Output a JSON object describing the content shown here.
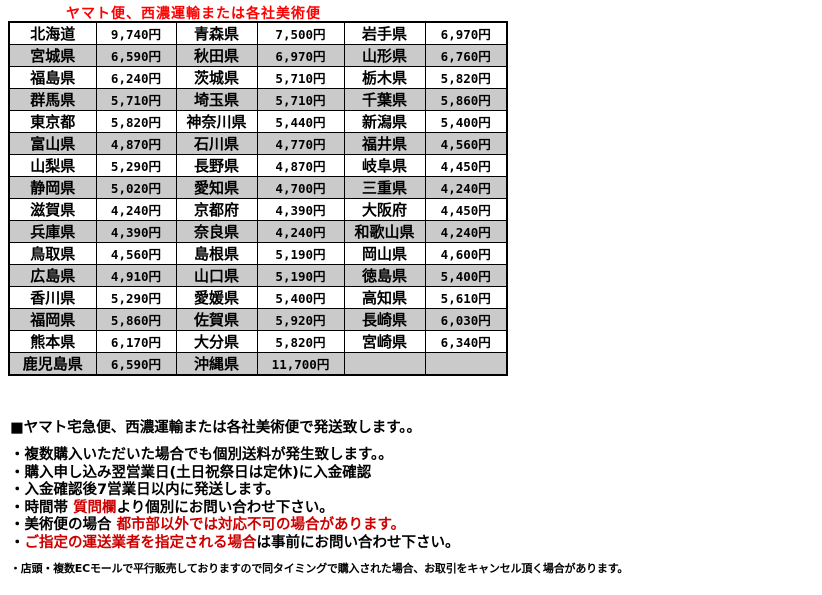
{
  "header": {
    "title": "ヤマト便、西濃運輸または各社美術便",
    "color": "#ff0000"
  },
  "shipping_table": {
    "alt_row_color": "#cacaca",
    "columns": [
      "prefecture",
      "price",
      "prefecture",
      "price",
      "prefecture",
      "price"
    ],
    "rows": [
      [
        "北海道",
        "9,740円",
        "青森県",
        "7,500円",
        "岩手県",
        "6,970円"
      ],
      [
        "宮城県",
        "6,590円",
        "秋田県",
        "6,970円",
        "山形県",
        "6,760円"
      ],
      [
        "福島県",
        "6,240円",
        "茨城県",
        "5,710円",
        "栃木県",
        "5,820円"
      ],
      [
        "群馬県",
        "5,710円",
        "埼玉県",
        "5,710円",
        "千葉県",
        "5,860円"
      ],
      [
        "東京都",
        "5,820円",
        "神奈川県",
        "5,440円",
        "新潟県",
        "5,400円"
      ],
      [
        "富山県",
        "4,870円",
        "石川県",
        "4,770円",
        "福井県",
        "4,560円"
      ],
      [
        "山梨県",
        "5,290円",
        "長野県",
        "4,870円",
        "岐阜県",
        "4,450円"
      ],
      [
        "静岡県",
        "5,020円",
        "愛知県",
        "4,700円",
        "三重県",
        "4,240円"
      ],
      [
        "滋賀県",
        "4,240円",
        "京都府",
        "4,390円",
        "大阪府",
        "4,450円"
      ],
      [
        "兵庫県",
        "4,390円",
        "奈良県",
        "4,240円",
        "和歌山県",
        "4,240円"
      ],
      [
        "鳥取県",
        "4,560円",
        "島根県",
        "5,190円",
        "岡山県",
        "4,600円"
      ],
      [
        "広島県",
        "4,910円",
        "山口県",
        "5,190円",
        "徳島県",
        "5,400円"
      ],
      [
        "香川県",
        "5,290円",
        "愛媛県",
        "5,400円",
        "高知県",
        "5,610円"
      ],
      [
        "福岡県",
        "5,860円",
        "佐賀県",
        "5,920円",
        "長崎県",
        "6,030円"
      ],
      [
        "熊本県",
        "6,170円",
        "大分県",
        "5,820円",
        "宮崎県",
        "6,340円"
      ],
      [
        "鹿児島県",
        "6,590円",
        "沖縄県",
        "11,700円",
        "",
        ""
      ]
    ]
  },
  "notes": {
    "red_color": "#cc0000",
    "heading": "■ヤマト宅急便、西濃運輸または各社美術便で発送致します。。",
    "bullets": [
      {
        "segments": [
          {
            "text": "・複数購入いただいた場合でも個別送料が発生致します。。",
            "red": false
          }
        ]
      },
      {
        "segments": [
          {
            "text": "・購入申し込み翌営業日(土日祝祭日は定休)に入金確認",
            "red": false
          }
        ]
      },
      {
        "segments": [
          {
            "text": "・入金確認後7営業日以内に発送します。",
            "red": false
          }
        ]
      },
      {
        "segments": [
          {
            "text": "・時間帯 ",
            "red": false
          },
          {
            "text": "質問欄",
            "red": true
          },
          {
            "text": "より個別にお問い合わせ下さい。",
            "red": false
          }
        ]
      },
      {
        "segments": [
          {
            "text": "・美術便の場合 ",
            "red": false
          },
          {
            "text": "都市部以外では対応不可の場合があります。",
            "red": true
          }
        ]
      },
      {
        "segments": [
          {
            "text": "・",
            "red": false
          },
          {
            "text": "ご指定の運送業者を指定される場合",
            "red": true
          },
          {
            "text": "は事前にお問い合わせ下さい。",
            "red": false
          }
        ]
      }
    ],
    "footnote": "・店頭・複数ECモールで平行販売しておりますので同タイミングで購入された場合、お取引をキャンセル頂く場合があります。"
  }
}
